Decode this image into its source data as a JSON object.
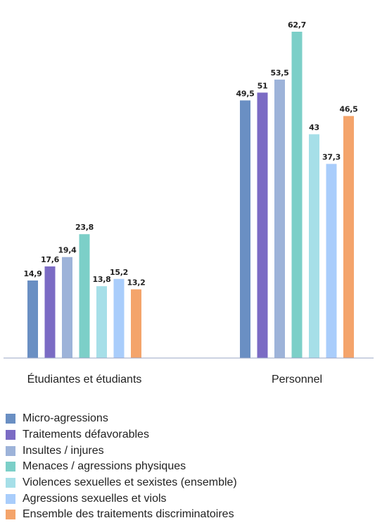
{
  "chart_data": {
    "type": "bar",
    "title": "",
    "xlabel": "",
    "ylabel": "",
    "ylim": [
      0,
      65
    ],
    "grid": false,
    "legend_position": "bottom",
    "categories": [
      "Étudiantes et étudiants",
      "Personnel"
    ],
    "series": [
      {
        "name": "Micro-agressions",
        "color": "#6a8fc3",
        "values": [
          14.9,
          49.5
        ],
        "labels": [
          "14,9",
          "49,5"
        ]
      },
      {
        "name": "Traitements défavorables",
        "color": "#7b6bc4",
        "values": [
          17.6,
          51
        ],
        "labels": [
          "17,6",
          "51"
        ]
      },
      {
        "name": "Insultes / injures",
        "color": "#9db3d9",
        "values": [
          19.4,
          53.5
        ],
        "labels": [
          "19,4",
          "53,5"
        ]
      },
      {
        "name": "Menaces / agressions physiques",
        "color": "#7ccfc8",
        "values": [
          23.8,
          62.7
        ],
        "labels": [
          "23,8",
          "62,7"
        ]
      },
      {
        "name": "Violences sexuelles et sexistes (ensemble)",
        "color": "#a6dfe8",
        "values": [
          13.8,
          43
        ],
        "labels": [
          "13,8",
          "43"
        ]
      },
      {
        "name": "Agressions sexuelles et viols",
        "color": "#a9cdfb",
        "values": [
          15.2,
          37.3
        ],
        "labels": [
          "15,2",
          "37,3"
        ]
      },
      {
        "name": "Ensemble des traitements discriminatoires",
        "color": "#f4a46b",
        "values": [
          13.2,
          46.5
        ],
        "labels": [
          "13,2",
          "46,5"
        ]
      }
    ]
  }
}
